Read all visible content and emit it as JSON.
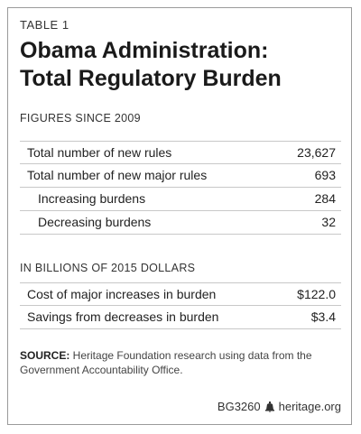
{
  "table_label": "TABLE 1",
  "title_line1": "Obama Administration:",
  "title_line2": "Total Regulatory Burden",
  "section1": {
    "label": "FIGURES SINCE 2009",
    "rows": [
      {
        "label": "Total number of new rules",
        "value": "23,627"
      },
      {
        "label": "Total number of new major rules",
        "value": "693"
      },
      {
        "label": "Increasing burdens",
        "value": "284"
      },
      {
        "label": "Decreasing burdens",
        "value": "32"
      }
    ]
  },
  "section2": {
    "label": "IN BILLIONS OF 2015 DOLLARS",
    "rows": [
      {
        "label": "Cost of major increases in burden",
        "value": "$122.0"
      },
      {
        "label": "Savings from decreases in burden",
        "value": "$3.4"
      }
    ]
  },
  "source": {
    "prefix": "SOURCE:",
    "text": " Heritage Foundation research using data from the Government Accountability Office."
  },
  "footer": {
    "code": "BG3260",
    "icon": "liberty-bell-icon",
    "site": "heritage.org"
  }
}
